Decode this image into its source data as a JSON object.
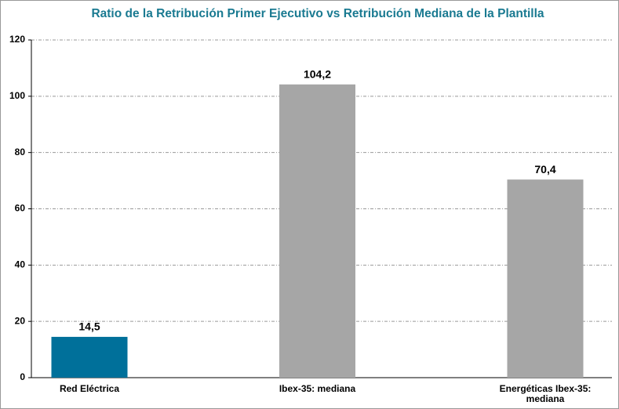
{
  "chart_data": {
    "type": "bar",
    "title": "Ratio de la Retribución Primer Ejecutivo vs Retribución Mediana de la Plantilla",
    "categories": [
      "Red Eléctrica",
      "Ibex-35: mediana",
      "Energéticas Ibex-35: mediana"
    ],
    "values": [
      14.5,
      104.2,
      70.4
    ],
    "value_labels": [
      "14,5",
      "104,2",
      "70,4"
    ],
    "colors": [
      "#00709a",
      "#a6a6a6",
      "#a6a6a6"
    ],
    "ylim": [
      0,
      120
    ],
    "yticks": [
      0,
      20,
      40,
      60,
      80,
      100,
      120
    ],
    "grid": true
  }
}
